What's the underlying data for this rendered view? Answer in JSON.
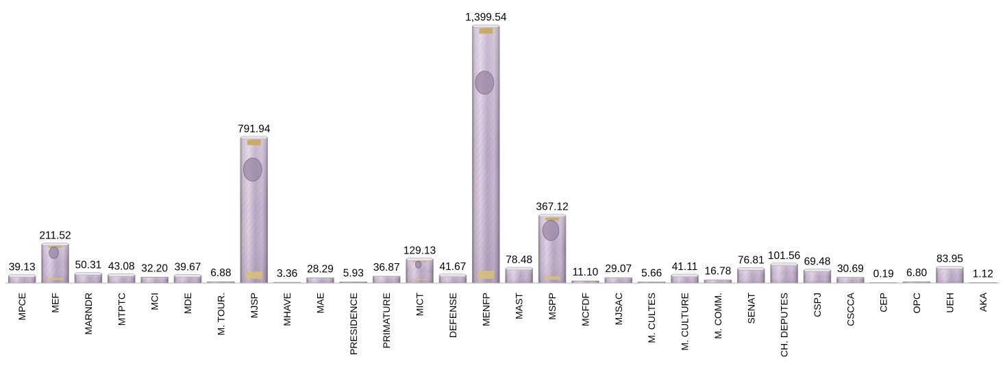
{
  "chart_data": {
    "type": "bar",
    "title": "",
    "xlabel": "",
    "ylabel": "",
    "ylim": [
      0,
      1400
    ],
    "grid": false,
    "legend": "none",
    "categories": [
      "MPCE",
      "MEF",
      "MARNDR",
      "MTPTC",
      "MCI",
      "MDE",
      "M. TOUR.",
      "MJSP",
      "MHAVE",
      "MAE",
      "PRESIDENCE",
      "PRIMATURE",
      "MICT",
      "DEFENSE",
      "MENFP",
      "MAST",
      "MSPP",
      "MCFDF",
      "MJSAC",
      "M. CULTES",
      "M. CULTURE",
      "M. COMM.",
      "SENAT",
      "CH. DEPUTES",
      "CSPJ",
      "CSCCA",
      "CEP",
      "OPC",
      "UEH",
      "AKA"
    ],
    "values": [
      39.13,
      211.52,
      50.31,
      43.08,
      32.2,
      39.67,
      6.88,
      791.94,
      3.36,
      28.29,
      5.93,
      36.87,
      129.13,
      41.67,
      1399.54,
      78.48,
      367.12,
      11.1,
      29.07,
      5.66,
      41.11,
      16.78,
      76.81,
      101.56,
      69.48,
      30.69,
      0.19,
      6.8,
      83.95,
      1.12
    ],
    "value_labels": [
      "39.13",
      "211.52",
      "50.31",
      "43.08",
      "32.20",
      "39.67",
      "6.88",
      "791.94",
      "3.36",
      "28.29",
      "5.93",
      "36.87",
      "129.13",
      "41.67",
      "1,399.54",
      "78.48",
      "367.12",
      "11.10",
      "29.07",
      "5.66",
      "41.11",
      "16.78",
      "76.81",
      "101.56",
      "69.48",
      "30.69",
      "0.19",
      "6.80",
      "83.95",
      "1.12"
    ],
    "bar_fill": "banknote-texture",
    "colors": {
      "note_base": "#c9b5cf",
      "note_purple": "#8c6f9c",
      "note_gold": "#c9a95c",
      "axis": "#b0b0b0",
      "text": "#000000"
    }
  }
}
